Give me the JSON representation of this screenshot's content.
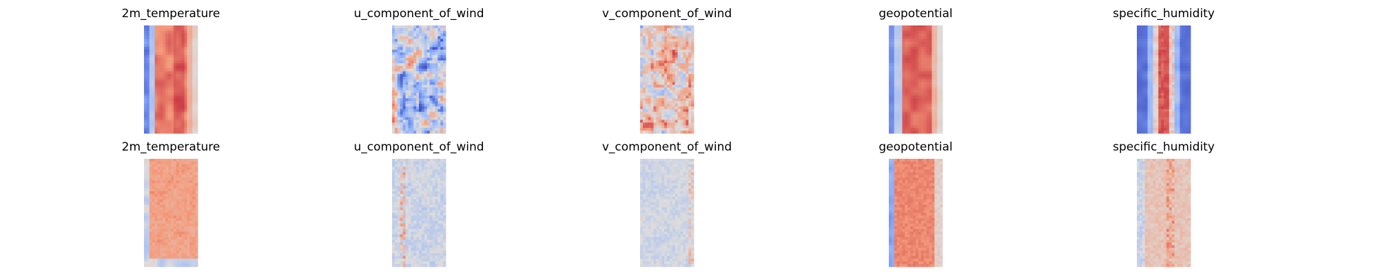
{
  "figure": {
    "background": "#ffffff",
    "colormap": "coolwarm"
  },
  "chart_data": [
    {
      "type": "heatmap",
      "title": "2m_temperature",
      "row": 1,
      "col": 1,
      "pattern": "temperature"
    },
    {
      "type": "heatmap",
      "title": "u_component_of_wind",
      "row": 1,
      "col": 2,
      "pattern": "wind_u"
    },
    {
      "type": "heatmap",
      "title": "v_component_of_wind",
      "row": 1,
      "col": 3,
      "pattern": "wind_v"
    },
    {
      "type": "heatmap",
      "title": "geopotential",
      "row": 1,
      "col": 4,
      "pattern": "geopotential"
    },
    {
      "type": "heatmap",
      "title": "specific_humidity",
      "row": 1,
      "col": 5,
      "pattern": "humidity"
    },
    {
      "type": "heatmap",
      "title": "2m_temperature",
      "row": 2,
      "col": 1,
      "pattern": "temperature_diff"
    },
    {
      "type": "heatmap",
      "title": "u_component_of_wind",
      "row": 2,
      "col": 2,
      "pattern": "wind_u_diff"
    },
    {
      "type": "heatmap",
      "title": "v_component_of_wind",
      "row": 2,
      "col": 3,
      "pattern": "wind_v_diff"
    },
    {
      "type": "heatmap",
      "title": "geopotential",
      "row": 2,
      "col": 4,
      "pattern": "geopotential_diff"
    },
    {
      "type": "heatmap",
      "title": "specific_humidity",
      "row": 2,
      "col": 5,
      "pattern": "humidity_diff"
    }
  ]
}
